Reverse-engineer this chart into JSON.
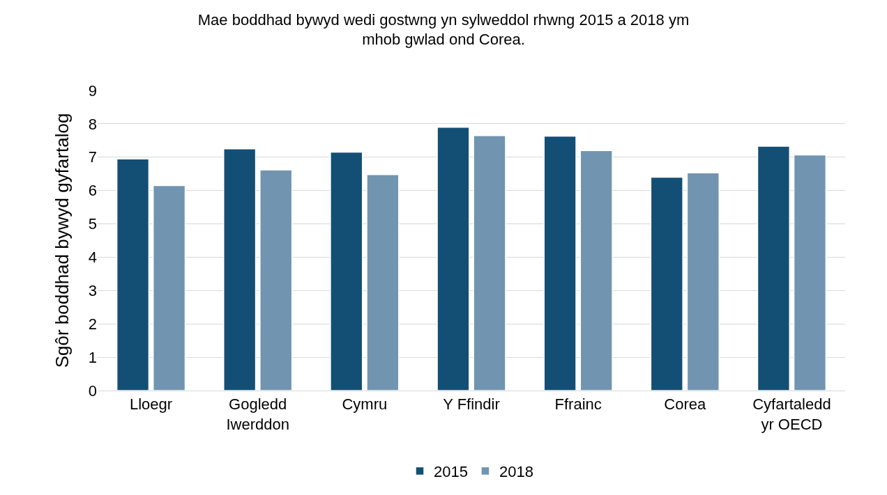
{
  "chart_data": {
    "type": "bar",
    "title": "Mae boddhad bywyd wedi gostwng yn sylweddol rhwng 2015 a 2018 ym\nmhob gwlad ond Corea.",
    "ylabel": "Sgôr boddhad bywyd gyfartalog",
    "categories": [
      "Lloegr",
      "Gogledd\nIwerddon",
      "Cymru",
      "Y Ffindir",
      "Ffrainc",
      "Corea",
      "Cyfartaledd\nyr OECD"
    ],
    "series": [
      {
        "name": "2015",
        "color": "#134f74",
        "values": [
          6.95,
          7.25,
          7.15,
          7.9,
          7.63,
          6.4,
          7.33
        ]
      },
      {
        "name": "2018",
        "color": "#7195b0",
        "values": [
          6.15,
          6.62,
          6.48,
          7.65,
          7.2,
          6.53,
          7.07
        ]
      }
    ],
    "ylim": [
      0,
      9
    ],
    "yticks": [
      0,
      1,
      2,
      3,
      4,
      5,
      6,
      7,
      8,
      9
    ],
    "grid": "y",
    "legend": "bottom"
  }
}
